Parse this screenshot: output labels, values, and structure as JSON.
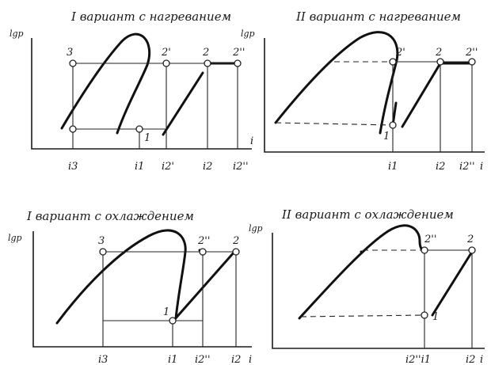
{
  "panels": [
    {
      "title": "I вариант с нагреванием",
      "ylabel": "lgp",
      "xlabel": "i",
      "point_labels": [
        "3",
        "2'",
        "2",
        "2''",
        "1"
      ],
      "x_ticks": [
        "i3",
        "i1",
        "i2'",
        "i2",
        "i2''"
      ]
    },
    {
      "title": "II вариант с нагреванием",
      "ylabel": "lgp",
      "xlabel": "i",
      "point_labels": [
        "2'",
        "2",
        "2''",
        "1"
      ],
      "x_ticks": [
        "i1",
        "i2",
        "i2''"
      ]
    },
    {
      "title": "I вариант с охлаждением",
      "ylabel": "lgp",
      "xlabel": "i",
      "point_labels": [
        "3",
        "2''",
        "2",
        "1"
      ],
      "x_ticks": [
        "i3",
        "i1",
        "i2''",
        "i2"
      ]
    },
    {
      "title": "II вариант с охлаждением",
      "ylabel": "lgp",
      "xlabel": "i",
      "point_labels": [
        "2''",
        "2",
        "1"
      ],
      "x_ticks": [
        "i2''i1",
        "i2"
      ]
    }
  ]
}
